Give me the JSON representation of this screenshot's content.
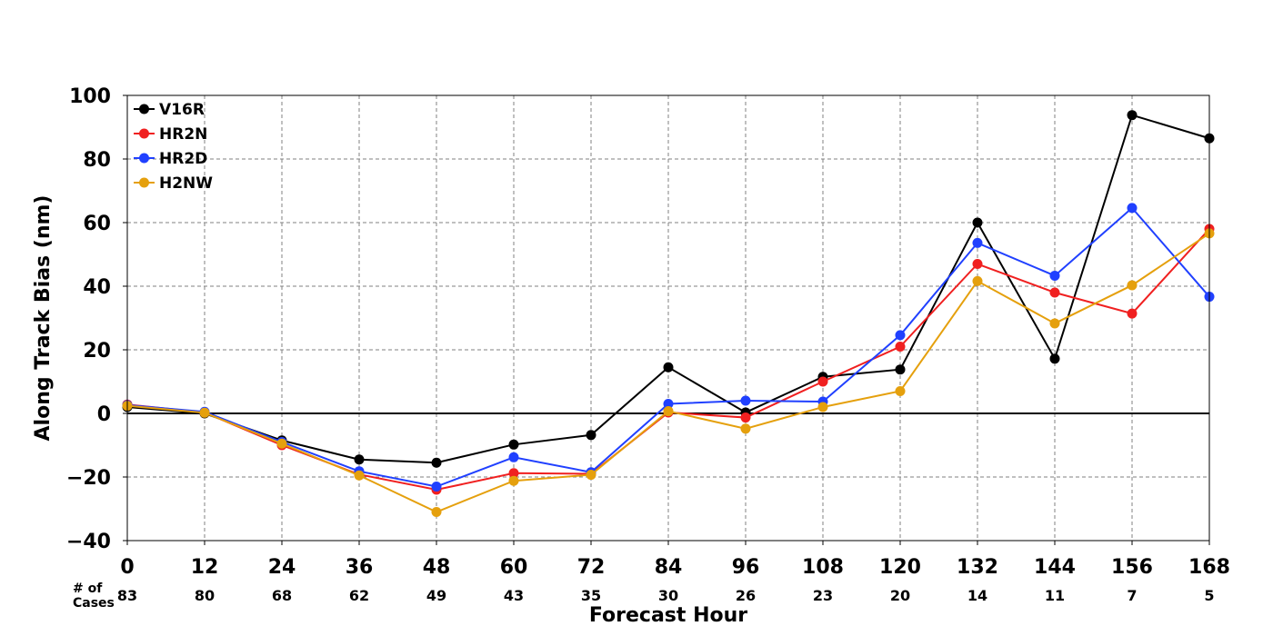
{
  "chart_data": {
    "type": "line",
    "title": "",
    "xlabel": "Forecast Hour",
    "ylabel": "Along Track Bias (nm)",
    "x": [
      0,
      12,
      24,
      36,
      48,
      60,
      72,
      84,
      96,
      108,
      120,
      132,
      144,
      156,
      168
    ],
    "xticks": [
      "0",
      "12",
      "24",
      "36",
      "48",
      "60",
      "72",
      "84",
      "96",
      "108",
      "120",
      "132",
      "144",
      "156",
      "168"
    ],
    "xlim": [
      0,
      168
    ],
    "ylim": [
      -40,
      100
    ],
    "yticks": [
      "−40",
      "−20",
      "0",
      "20",
      "40",
      "60",
      "80",
      "100"
    ],
    "ytick_values": [
      -40,
      -20,
      0,
      20,
      40,
      60,
      80,
      100
    ],
    "grid": true,
    "legend_position": "top-left",
    "cases_header": [
      "# of",
      "Cases"
    ],
    "cases": [
      "83",
      "80",
      "68",
      "62",
      "49",
      "43",
      "35",
      "30",
      "26",
      "23",
      "20",
      "14",
      "11",
      "7",
      "5"
    ],
    "series": [
      {
        "name": "V16R",
        "color": "#000000",
        "values": [
          2,
          0,
          -8.5,
          -14.5,
          -15.5,
          -9.8,
          -6.8,
          14.5,
          0.3,
          11.5,
          13.8,
          60,
          17.2,
          93.8,
          86.5
        ]
      },
      {
        "name": "HR2N",
        "color": "#f02020",
        "values": [
          2.8,
          0.3,
          -10,
          -19.2,
          -24,
          -18.8,
          -19,
          0.3,
          -1.3,
          10,
          21,
          47,
          38,
          31.4,
          58
        ]
      },
      {
        "name": "HR2D",
        "color": "#2040ff",
        "values": [
          2.6,
          0.5,
          -9,
          -18.2,
          -23,
          -13.8,
          -18.5,
          3,
          4,
          3.7,
          24.6,
          53.6,
          43.3,
          64.6,
          36.7
        ]
      },
      {
        "name": "H2NW",
        "color": "#e5a00d",
        "values": [
          2.4,
          0.2,
          -9.5,
          -19.5,
          -31,
          -21.2,
          -19.3,
          0.7,
          -4.8,
          2,
          7,
          41.6,
          28.3,
          40.3,
          56.6
        ]
      }
    ]
  }
}
